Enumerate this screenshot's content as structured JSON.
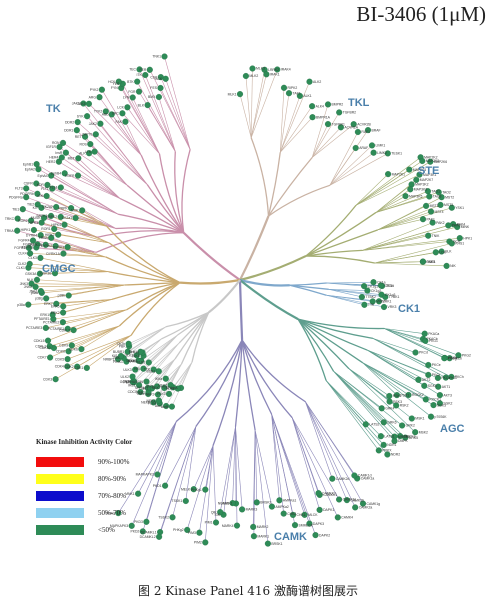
{
  "title": "BI-3406 (1μM)",
  "caption": "图 2   Kinase Panel 416 激酶谱树图展示",
  "legend": {
    "title": "Kinase Inhibition Activity Color",
    "items": [
      {
        "label": "90%-100%",
        "color": "#f20d0d"
      },
      {
        "label": "80%-90%",
        "color": "#ffff1a"
      },
      {
        "label": "70%-80%",
        "color": "#0d0dcc"
      },
      {
        "label": "50%-70%",
        "color": "#8fd1f0"
      },
      {
        "label": "<50%",
        "color": "#2e8b57"
      }
    ]
  },
  "dot_color": "#2e8b57",
  "groups": [
    {
      "id": "TK",
      "label": "TK",
      "color": "#c98faa",
      "kinases": [
        "FGFR3",
        "FGFR2",
        "FGFR1",
        "FGFR4",
        "TRKA",
        "TRKB",
        "TRKC",
        "ROR1",
        "ROR2",
        "MUSK",
        "TIE1",
        "TIE2",
        "KIT",
        "PDGFRa",
        "PDGFRb",
        "FLT3",
        "CSFR",
        "KDR",
        "FLT1",
        "FLT4",
        "EphA2",
        "EphA4",
        "EphB1",
        "EphB4",
        "EGFR",
        "HER2",
        "HER4",
        "InsR",
        "IGF1R",
        "MET",
        "RON",
        "ALK",
        "LTK",
        "ROS",
        "RET",
        "DDR1",
        "DDR2",
        "ZAP70",
        "SYK",
        "JAK1",
        "JAK2",
        "JAK3",
        "TYK2",
        "ABL",
        "ARG",
        "FAK",
        "PYK2",
        "SRC",
        "LCK",
        "FYN",
        "YES",
        "HCK",
        "LYN",
        "BLK",
        "FGR",
        "BTK",
        "TEC",
        "ITK",
        "BMX",
        "FER",
        "FES",
        "CSK",
        "ACK",
        "TNK1"
      ]
    },
    {
      "id": "TKL",
      "label": "TKL",
      "color": "#c9b2a3",
      "kinases": [
        "MLK1",
        "MLK2",
        "MLK3",
        "LRRK2",
        "IRAK1",
        "IRAK4",
        "RIPK2",
        "TAK1",
        "ALK1",
        "ALK2",
        "ALK4",
        "BMPR1A",
        "BMPR2",
        "TGFBR1",
        "TGFBR2",
        "ACVR2A",
        "ACVR2B",
        "RAF1",
        "BRAF",
        "ARAF",
        "LIMK1",
        "LIMK2",
        "TESK1"
      ]
    },
    {
      "id": "STE",
      "label": "STE",
      "color": "#a4ad72",
      "kinases": [
        "MAP2K1",
        "MAP2K2",
        "MAP2K3",
        "MAP2K4",
        "MAP2K6",
        "MAP2K7",
        "MAP3K1",
        "MAP3K2",
        "MAP3K3",
        "MAP3K5",
        "TAO1",
        "TAO2",
        "TAO3",
        "MST1",
        "MST2",
        "MST3",
        "MST4",
        "YSK1",
        "PAK1",
        "PAK2",
        "PAK4",
        "PAK6",
        "MINK",
        "TNIK",
        "HPK1",
        "GCK",
        "KHS1",
        "SLK",
        "LOK",
        "OSR1",
        "PAK3",
        "NIK"
      ]
    },
    {
      "id": "CK1",
      "label": "CK1",
      "color": "#7fa8cc",
      "kinases": [
        "CK1a",
        "CK1d",
        "CK1e",
        "CK1g1",
        "CK1g2",
        "CK1g3",
        "TTBK1",
        "TTBK2",
        "VRK1",
        "VRK2",
        "VRK3",
        "TTK"
      ]
    },
    {
      "id": "AGC",
      "label": "AGC",
      "color": "#5e9e8e",
      "kinases": [
        "PKACa",
        "PKACb",
        "PKG1",
        "PKG2",
        "PKCa",
        "PKCb",
        "PKCg",
        "PKCd",
        "PKCe",
        "PKCh",
        "PKCi",
        "PKCz",
        "PKCt",
        "AKT1",
        "AKT2",
        "AKT3",
        "SGK1",
        "SGK2",
        "SGK3",
        "ROCK1",
        "ROCK2",
        "PDK1",
        "p70S6K",
        "RSK1",
        "RSK2",
        "RSK3",
        "MSK1",
        "MSK2",
        "GRK2",
        "GRK4",
        "GRK5",
        "GRK6",
        "MRCKa",
        "MRCKb",
        "DMPK",
        "LATS1",
        "LATS2",
        "NDR1",
        "NDR2",
        "PRKX"
      ]
    },
    {
      "id": "CAMK",
      "label": "CAMK",
      "color": "#8a86b8",
      "kinases": [
        "CAMK1a",
        "CAMK1d",
        "CAMK1g",
        "CAMK2a",
        "CAMK2b",
        "CAMK2d",
        "CAMK2g",
        "CAMK4",
        "CAMKK1",
        "CAMKK2",
        "DAPK1",
        "DAPK2",
        "DAPK3",
        "MLCK",
        "SMMLCK",
        "CHK1",
        "CHK2",
        "AMPKa1",
        "AMPKa2",
        "BRSK1",
        "BRSK2",
        "MARK1",
        "MARK2",
        "MARK3",
        "MARK4",
        "NUAK1",
        "NUAK2",
        "SIK",
        "QIK",
        "PIM1",
        "PIM2",
        "PIM3",
        "PHKg1",
        "PHKg2",
        "MELK",
        "TSSK1",
        "TSSK2",
        "DCAMKL1",
        "DCAMKL2",
        "PKD1",
        "PKD2",
        "PKD3",
        "MAPKAPK2",
        "MAPKAPK3",
        "MNK1",
        "MNK2"
      ]
    },
    {
      "id": "CMGC",
      "label": "CMGC",
      "color": "#c9a96f",
      "kinases": [
        "CDK1",
        "CDK2",
        "CDK3",
        "CDK4",
        "CDK5",
        "CDK6",
        "CDK7",
        "CDK8",
        "CDK9",
        "CDK10",
        "CDKL1",
        "CDKL2",
        "CDKL5",
        "PCTAIRE1",
        "PCTAIRE2",
        "PCTAIRE3",
        "PFTAIRE1",
        "ERK1",
        "ERK2",
        "ERK5",
        "ERK7",
        "p38a",
        "p38b",
        "p38g",
        "p38d",
        "JNK1",
        "JNK2",
        "JNK3",
        "NLK",
        "GSK3A",
        "GSK3B",
        "CLK1",
        "CLK2",
        "CLK3",
        "CLK4",
        "DYRK1A",
        "DYRK1B",
        "DYRK2",
        "DYRK3",
        "DYRK4",
        "HIPK1",
        "HIPK2",
        "HIPK3",
        "HIPK4",
        "SRPK1",
        "SRPK2",
        "CK2a1",
        "CK2a2",
        "PRPK",
        "MOK",
        "ICK"
      ]
    },
    {
      "id": "OTHER",
      "label": "",
      "color": "#c8c8c8",
      "kinases": [
        "AurA",
        "AurB",
        "AurC",
        "PLK1",
        "PLK2",
        "PLK3",
        "PLK4",
        "NEK1",
        "NEK2",
        "NEK6",
        "NEK7",
        "NEK9",
        "IKKa",
        "IKKb",
        "TBK1",
        "IKKe",
        "WEE1",
        "MYT1",
        "CDC7",
        "BUB1",
        "HASPIN",
        "TTK",
        "IRE1",
        "PEK",
        "GCN2",
        "PKR",
        "HRI",
        "ULK1",
        "ULK2",
        "ULK3",
        "MPSK1",
        "GAK",
        "AAK1",
        "BIKE",
        "STK16",
        "TLK1",
        "TLK2",
        "PINK1",
        "SBK",
        "BUBR1",
        "NRBP1",
        "KIS",
        "PBK",
        "CK2b"
      ]
    }
  ]
}
